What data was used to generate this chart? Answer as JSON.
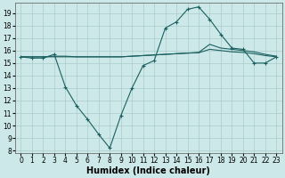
{
  "xlabel": "Humidex (Indice chaleur)",
  "background_color": "#cce8e8",
  "grid_color": "#aacccc",
  "line_color": "#1a6060",
  "x_ticks": [
    0,
    1,
    2,
    3,
    4,
    5,
    6,
    7,
    8,
    9,
    10,
    11,
    12,
    13,
    14,
    15,
    16,
    17,
    18,
    19,
    20,
    21,
    22,
    23
  ],
  "y_ticks": [
    8,
    9,
    10,
    11,
    12,
    13,
    14,
    15,
    16,
    17,
    18,
    19
  ],
  "xlim": [
    -0.5,
    23.5
  ],
  "ylim": [
    7.8,
    19.8
  ],
  "line1_x": [
    0,
    1,
    2,
    3,
    4,
    5,
    6,
    7,
    8,
    9,
    10,
    11,
    12,
    13,
    14,
    15,
    16,
    17,
    18,
    19,
    20,
    21,
    22,
    23
  ],
  "line1_y": [
    15.5,
    15.4,
    15.4,
    15.7,
    13.1,
    11.6,
    10.5,
    9.3,
    8.2,
    10.8,
    13.0,
    14.8,
    15.2,
    17.8,
    18.3,
    19.3,
    19.5,
    18.5,
    17.3,
    16.2,
    16.1,
    15.0,
    15.0,
    15.5
  ],
  "line2_x": [
    0,
    1,
    2,
    3,
    4,
    5,
    6,
    7,
    8,
    9,
    10,
    11,
    12,
    13,
    14,
    15,
    16,
    17,
    18,
    19,
    20,
    21,
    22,
    23
  ],
  "line2_y": [
    15.5,
    15.5,
    15.5,
    15.5,
    15.5,
    15.5,
    15.5,
    15.5,
    15.5,
    15.5,
    15.55,
    15.6,
    15.65,
    15.7,
    15.75,
    15.8,
    15.85,
    16.5,
    16.2,
    16.1,
    16.0,
    15.9,
    15.7,
    15.55
  ],
  "line3_x": [
    0,
    1,
    2,
    3,
    4,
    5,
    6,
    7,
    8,
    9,
    10,
    11,
    12,
    13,
    14,
    15,
    16,
    17,
    18,
    19,
    20,
    21,
    22,
    23
  ],
  "line3_y": [
    15.5,
    15.5,
    15.5,
    15.55,
    15.55,
    15.5,
    15.5,
    15.5,
    15.5,
    15.5,
    15.55,
    15.6,
    15.65,
    15.7,
    15.75,
    15.8,
    15.82,
    16.1,
    16.0,
    15.9,
    15.85,
    15.75,
    15.6,
    15.5
  ],
  "tick_fontsize": 5.5,
  "xlabel_fontsize": 7
}
